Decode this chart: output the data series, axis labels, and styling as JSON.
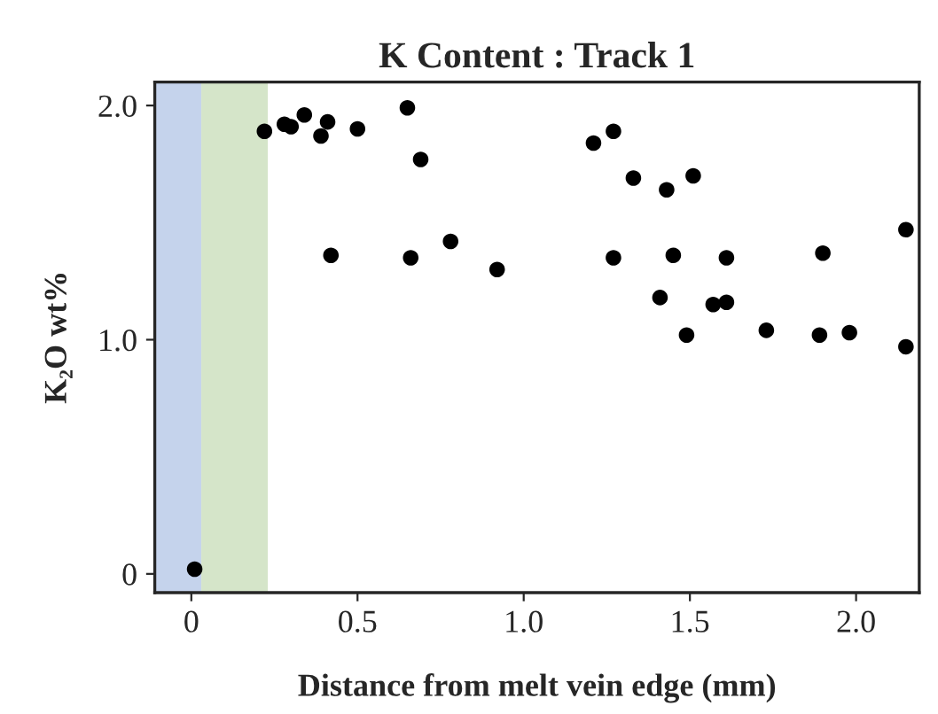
{
  "chart_data": {
    "type": "scatter",
    "title": "K Content : Track 1",
    "xlabel": "Distance from melt vein edge (mm)",
    "ylabel": "K₂O wt%",
    "xlim": [
      -0.11,
      2.19
    ],
    "ylim": [
      -0.08,
      2.1
    ],
    "xticks": [
      {
        "value": 0,
        "label": "0"
      },
      {
        "value": 0.5,
        "label": "0.5"
      },
      {
        "value": 1,
        "label": "1.0"
      },
      {
        "value": 1.5,
        "label": "1.5"
      },
      {
        "value": 2,
        "label": "2.0"
      }
    ],
    "yticks": [
      {
        "value": 0,
        "label": "0"
      },
      {
        "value": 1,
        "label": "1.0"
      },
      {
        "value": 2,
        "label": "2.0"
      }
    ],
    "bands": [
      {
        "axis": "x",
        "from": -0.11,
        "to": 0.03,
        "label": null,
        "color": "#c5d3ec"
      },
      {
        "axis": "x",
        "from": 0.03,
        "to": 0.23,
        "label": null,
        "color": "#d5e5c9"
      }
    ],
    "marker": "circle",
    "grid": false,
    "series": [
      {
        "color": "#000000",
        "x": [
          0.01,
          0.22,
          0.28,
          0.3,
          0.34,
          0.39,
          0.41,
          0.42,
          0.5,
          0.65,
          0.66,
          0.69,
          0.78,
          0.92,
          1.21,
          1.27,
          1.27,
          1.33,
          1.41,
          1.43,
          1.45,
          1.49,
          1.51,
          1.57,
          1.61,
          1.61,
          1.73,
          1.89,
          1.9,
          1.98,
          2.15,
          2.15
        ],
        "values": [
          0.02,
          1.89,
          1.92,
          1.91,
          1.96,
          1.87,
          1.93,
          1.36,
          1.9,
          1.99,
          1.35,
          1.77,
          1.42,
          1.3,
          1.84,
          1.89,
          1.35,
          1.69,
          1.18,
          1.64,
          1.36,
          1.02,
          1.7,
          1.15,
          1.16,
          1.35,
          1.04,
          1.02,
          1.37,
          1.03,
          1.47,
          0.97
        ]
      }
    ]
  }
}
